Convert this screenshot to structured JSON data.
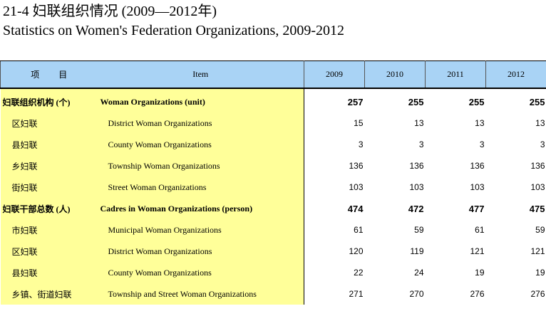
{
  "title": {
    "cn": "21-4 妇联组织情况 (2009—2012年)",
    "en": "Statistics on Women's Federation Organizations, 2009-2012"
  },
  "table": {
    "headers": {
      "cn": "项 目",
      "en": "Item",
      "years": [
        "2009",
        "2010",
        "2011",
        "2012"
      ]
    },
    "rows": [
      {
        "cn": "妇联组织机构 (个)",
        "en": "Woman Organizations (unit)",
        "values": [
          "257",
          "255",
          "255",
          "255"
        ]
      },
      {
        "cn": "区妇联",
        "en": "District Woman Organizations",
        "values": [
          "15",
          "13",
          "13",
          "13"
        ]
      },
      {
        "cn": "县妇联",
        "en": "County Woman Organizations",
        "values": [
          "3",
          "3",
          "3",
          "3"
        ]
      },
      {
        "cn": "乡妇联",
        "en": "Township Woman Organizations",
        "values": [
          "136",
          "136",
          "136",
          "136"
        ]
      },
      {
        "cn": "街妇联",
        "en": "Street Woman Organizations",
        "values": [
          "103",
          "103",
          "103",
          "103"
        ]
      },
      {
        "cn": "妇联干部总数 (人)",
        "en": "Cadres in Woman Organizations (person)",
        "values": [
          "474",
          "472",
          "477",
          "475"
        ]
      },
      {
        "cn": "市妇联",
        "en": "Municipal Woman Organizations",
        "values": [
          "61",
          "59",
          "61",
          "59"
        ]
      },
      {
        "cn": "区妇联",
        "en": "District Woman Organizations",
        "values": [
          "120",
          "119",
          "121",
          "121"
        ]
      },
      {
        "cn": "县妇联",
        "en": "County Woman Organizations",
        "values": [
          "22",
          "24",
          "19",
          "19"
        ]
      },
      {
        "cn": "乡镇、街道妇联",
        "en": "Township and Street Woman Organizations",
        "values": [
          "271",
          "270",
          "276",
          "276"
        ]
      }
    ]
  },
  "colors": {
    "header_bg": "#a9d3f5",
    "label_bg": "#ffff99"
  }
}
